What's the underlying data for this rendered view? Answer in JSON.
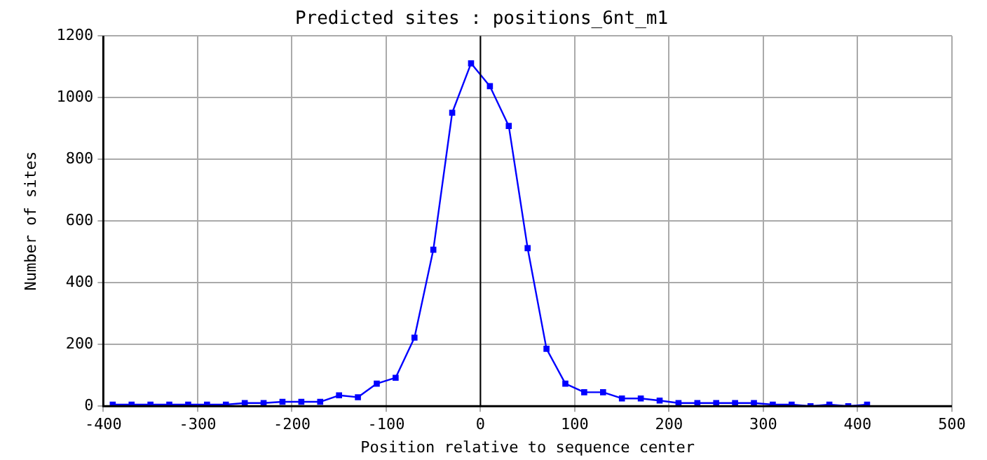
{
  "chart_data": {
    "type": "line",
    "title": "Predicted sites : positions_6nt_m1",
    "xlabel": "Position relative to sequence center",
    "ylabel": "Number of sites",
    "x": [
      -390,
      -370,
      -350,
      -330,
      -310,
      -290,
      -270,
      -250,
      -230,
      -210,
      -190,
      -170,
      -150,
      -130,
      -110,
      -90,
      -70,
      -50,
      -30,
      -10,
      10,
      30,
      50,
      70,
      90,
      110,
      130,
      150,
      170,
      190,
      210,
      230,
      250,
      270,
      290,
      310,
      330,
      350,
      370,
      390,
      410
    ],
    "series": [
      {
        "color": "#0000ff",
        "values": [
          5,
          5,
          5,
          5,
          5,
          5,
          5,
          10,
          10,
          14,
          14,
          14,
          35,
          29,
          73,
          92,
          222,
          507,
          951,
          1111,
          1037,
          908,
          512,
          186,
          73,
          45,
          45,
          25,
          25,
          18,
          10,
          10,
          10,
          10,
          10,
          5,
          5,
          0,
          5,
          0,
          5
        ]
      }
    ],
    "xlim": [
      -400,
      500
    ],
    "xticks": [
      -400,
      -300,
      -200,
      -100,
      0,
      100,
      200,
      300,
      400,
      500
    ],
    "ylim": [
      0,
      1200
    ],
    "yticks": [
      0,
      200,
      400,
      600,
      800,
      1000,
      1200
    ],
    "ref_lines": [
      {
        "axis": "x",
        "value": 0,
        "color": "#000000"
      }
    ],
    "grid": true,
    "legend": false,
    "marker": "square",
    "line_style": "solid"
  }
}
